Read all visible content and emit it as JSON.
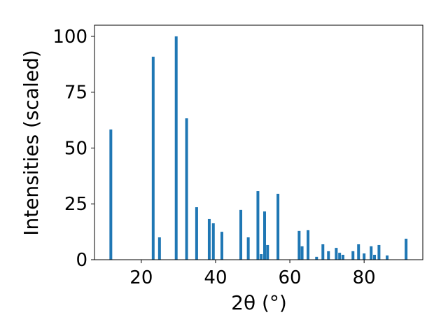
{
  "chart_data": {
    "type": "bar",
    "xlabel": "2θ (°)",
    "ylabel": "Intensities (scaled)",
    "x": [
      11.8,
      23.2,
      24.9,
      29.4,
      32.2,
      34.9,
      38.3,
      39.4,
      41.7,
      46.8,
      48.8,
      51.4,
      52.3,
      53.2,
      54.0,
      56.8,
      62.5,
      63.3,
      64.9,
      67.2,
      68.9,
      70.4,
      72.5,
      73.4,
      74.3,
      77.0,
      78.5,
      80.0,
      81.9,
      82.8,
      84.0,
      86.2,
      91.3
    ],
    "values": [
      58.3,
      90.9,
      10,
      100,
      63.3,
      23.5,
      18.2,
      16.3,
      12.5,
      22.3,
      10,
      30.7,
      2.5,
      21.6,
      6.6,
      29.5,
      12.9,
      6,
      13.2,
      1.3,
      6.9,
      3.8,
      5.3,
      3.1,
      2.2,
      3.8,
      6.9,
      2.8,
      6,
      2.2,
      6.6,
      1.9,
      9.4
    ],
    "color": "#1f77b4",
    "xlim": [
      7.4,
      95.8
    ],
    "xticks": [
      20,
      40,
      60,
      80
    ],
    "ylim": [
      0,
      105
    ],
    "yticks": [
      0,
      25,
      50,
      75,
      100
    ]
  }
}
